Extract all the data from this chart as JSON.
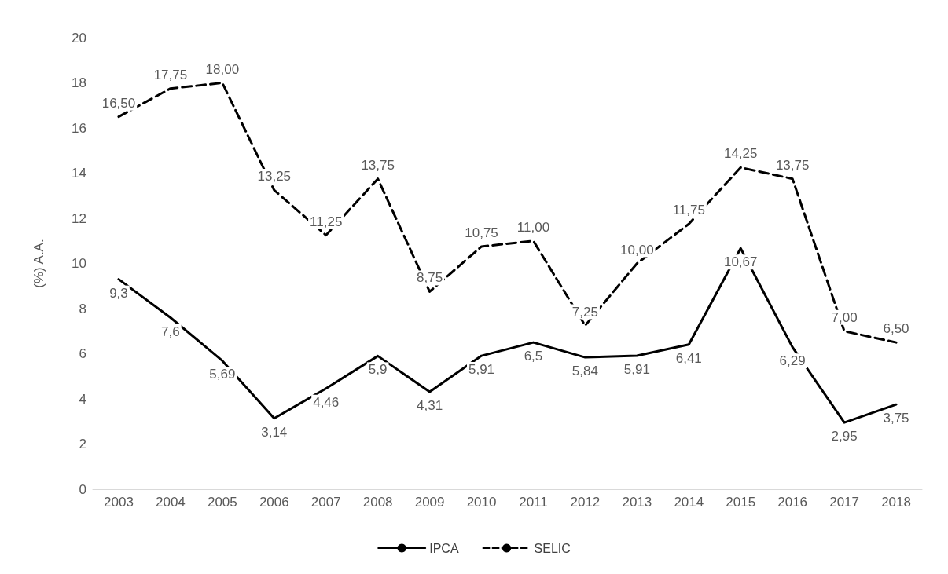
{
  "chart_data": {
    "type": "line",
    "ylabel": "(%) A.A.",
    "categories": [
      "2003",
      "2004",
      "2005",
      "2006",
      "2007",
      "2008",
      "2009",
      "2010",
      "2011",
      "2012",
      "2013",
      "2014",
      "2015",
      "2016",
      "2017",
      "2018"
    ],
    "ylim": [
      0,
      20
    ],
    "yticks": [
      0,
      2,
      4,
      6,
      8,
      10,
      12,
      14,
      16,
      18,
      20
    ],
    "grid": false,
    "legend": "bottom",
    "marker": "none",
    "series": [
      {
        "name": "IPCA",
        "color": "#000000",
        "line_style": "solid",
        "values": [
          9.3,
          7.6,
          5.69,
          3.14,
          4.46,
          5.9,
          4.31,
          5.91,
          6.5,
          5.84,
          5.91,
          6.41,
          10.67,
          6.29,
          2.95,
          3.75
        ],
        "value_labels": [
          "9,3",
          "7,6",
          "5,69",
          "3,14",
          "4,46",
          "5,9",
          "4,31",
          "5,91",
          "6,5",
          "5,84",
          "5,91",
          "6,41",
          "10,67",
          "6,29",
          "2,95",
          "3,75"
        ]
      },
      {
        "name": "SELIC",
        "color": "#000000",
        "line_style": "dashed",
        "values": [
          16.5,
          17.75,
          18,
          13.25,
          11.25,
          13.75,
          8.75,
          10.75,
          11,
          7.25,
          10,
          11.75,
          14.25,
          13.75,
          7,
          6.5
        ],
        "value_labels": [
          "16,50",
          "17,75",
          "18,00",
          "13,25",
          "11,25",
          "13,75",
          "8,75",
          "10,75",
          "11,00",
          "7,25",
          "10,00",
          "11,75",
          "14,25",
          "13,75",
          "7,00",
          "6,50"
        ]
      }
    ]
  }
}
